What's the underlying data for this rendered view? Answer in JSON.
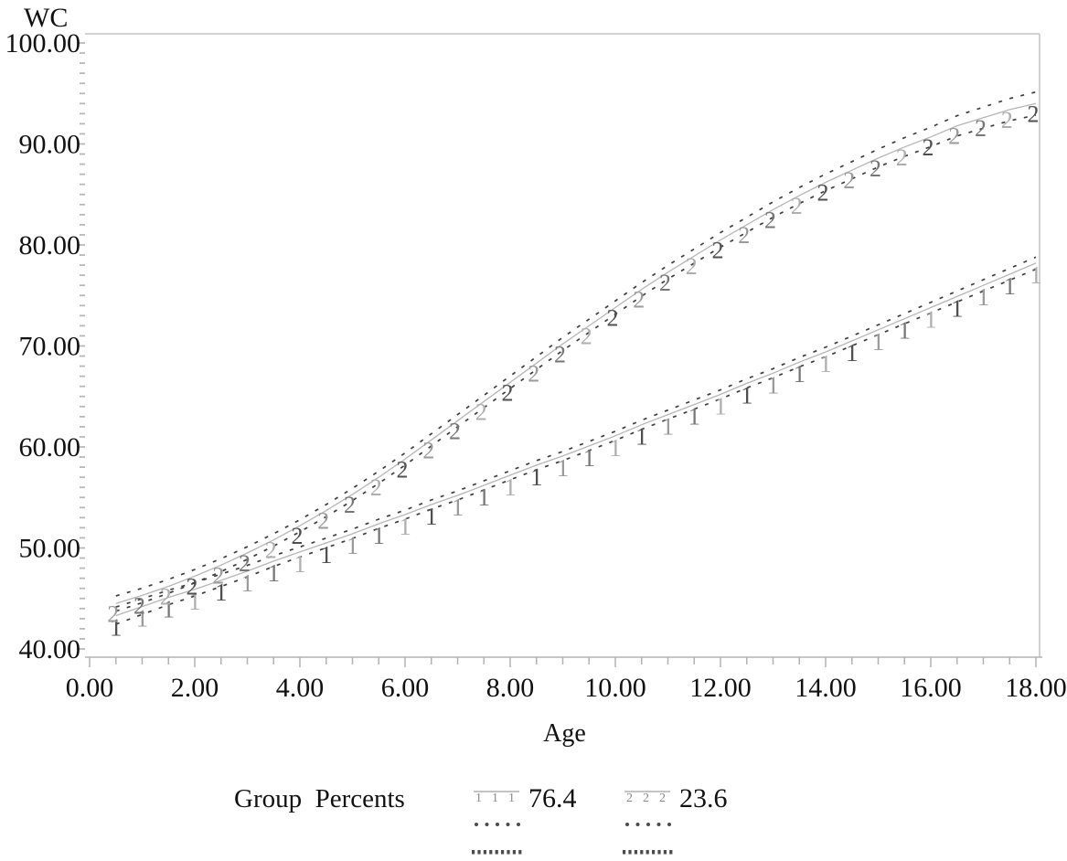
{
  "chart_data": {
    "type": "line",
    "title": "",
    "xlabel": "Age",
    "ylabel": "WC",
    "xlim": [
      0,
      18
    ],
    "ylim": [
      40,
      100
    ],
    "grid": false,
    "x_ticks": [
      0,
      2,
      4,
      6,
      8,
      10,
      12,
      14,
      16,
      18
    ],
    "x_tick_labels": [
      "0.00",
      "2.00",
      "4.00",
      "6.00",
      "8.00",
      "10.00",
      "12.00",
      "14.00",
      "16.00",
      "18.00"
    ],
    "x_minor_step": 0.5,
    "y_ticks": [
      100,
      90,
      80,
      70,
      60,
      50,
      40
    ],
    "y_tick_labels": [
      "100.00",
      "90.00",
      "80.00",
      "70.00",
      "60.00",
      "50.00",
      "40.00"
    ],
    "y_minor_step": 1,
    "x": [
      0.5,
      1,
      1.5,
      2,
      2.5,
      3,
      3.5,
      4,
      4.5,
      5,
      5.5,
      6,
      6.5,
      7,
      7.5,
      8,
      8.5,
      9,
      9.5,
      10,
      10.5,
      11,
      11.5,
      12,
      12.5,
      13,
      13.5,
      14,
      14.5,
      15,
      15.5,
      16,
      16.5,
      17,
      17.5,
      18
    ],
    "series": [
      {
        "name": "76.4",
        "marker_digit": "1",
        "values": [
          43.3,
          44.2,
          45.1,
          45.9,
          46.8,
          47.7,
          48.7,
          49.6,
          50.5,
          51.4,
          52.4,
          53.3,
          54.3,
          55.2,
          56.2,
          57.2,
          58.2,
          59.1,
          60.1,
          61.1,
          62.2,
          63.2,
          64.2,
          65.2,
          66.3,
          67.3,
          68.4,
          69.4,
          70.5,
          71.6,
          72.7,
          73.8,
          74.9,
          76.0,
          77.1,
          78.2
        ],
        "ci_offset": [
          0.85,
          0.78,
          0.72,
          0.66,
          0.61,
          0.57,
          0.53,
          0.5,
          0.48,
          0.46,
          0.45,
          0.45,
          0.45,
          0.45,
          0.45,
          0.45,
          0.45,
          0.45,
          0.45,
          0.45,
          0.45,
          0.45,
          0.45,
          0.45,
          0.45,
          0.45,
          0.46,
          0.47,
          0.48,
          0.49,
          0.5,
          0.52,
          0.54,
          0.56,
          0.58,
          0.6
        ]
      },
      {
        "name": "23.6",
        "marker_digit": "2",
        "values": [
          44.5,
          45.3,
          46.2,
          47.2,
          48.3,
          49.5,
          50.8,
          52.2,
          53.7,
          55.3,
          57.0,
          58.8,
          60.7,
          62.6,
          64.5,
          66.4,
          68.3,
          70.2,
          72.0,
          73.8,
          75.6,
          77.3,
          78.9,
          80.5,
          82.0,
          83.5,
          84.9,
          86.2,
          87.4,
          88.6,
          89.7,
          90.7,
          91.8,
          92.6,
          93.4,
          94.0
        ],
        "ci_offset": [
          0.75,
          0.72,
          0.69,
          0.66,
          0.64,
          0.62,
          0.61,
          0.6,
          0.6,
          0.6,
          0.6,
          0.6,
          0.6,
          0.6,
          0.61,
          0.62,
          0.63,
          0.64,
          0.65,
          0.66,
          0.67,
          0.68,
          0.7,
          0.72,
          0.74,
          0.76,
          0.79,
          0.82,
          0.85,
          0.88,
          0.92,
          0.96,
          1.0,
          1.05,
          1.1,
          1.15
        ]
      }
    ],
    "legend": {
      "title": "Group  Percents",
      "entries": [
        {
          "label": "76.4",
          "symbol_digit": "1"
        },
        {
          "label": "23.6",
          "symbol_digit": "2"
        }
      ],
      "position": "bottom"
    },
    "colors": {
      "curve": "#b6b6b6",
      "band": "#3d3d3d",
      "frame": "#c4c4c4",
      "axis": "#b2b2b2",
      "tick": "#b8b8b8",
      "text": "#111111",
      "marker_shades": [
        "#4f4f4f",
        "#9a9a9a",
        "#767676",
        "#aeaeae"
      ],
      "legend_digit": "#8a8a8a",
      "dot": "#4c4c4c"
    }
  }
}
